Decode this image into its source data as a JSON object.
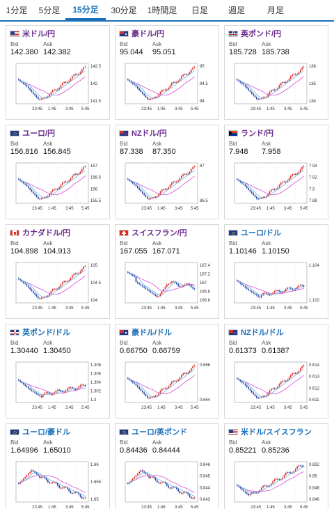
{
  "tabs": [
    {
      "label": "1分足",
      "active": false
    },
    {
      "label": "5分足",
      "active": false
    },
    {
      "label": "15分足",
      "active": true
    },
    {
      "label": "30分足",
      "active": false
    },
    {
      "label": "1時間足",
      "active": false
    },
    {
      "label": "日足",
      "active": false
    },
    {
      "label": "週足",
      "active": false
    },
    {
      "label": "月足",
      "active": false
    }
  ],
  "colors": {
    "accent": "#1a6fb8",
    "pair_jpy": "#6a2c8c",
    "bull": "#d9302c",
    "bear": "#1c3f9c",
    "ma_long": "#d84ad8",
    "ma_short": "#52a8e0"
  },
  "bid_label": "Bid",
  "ask_label": "Ask",
  "cards": [
    {
      "pair": "米ドル/円",
      "flag": "us",
      "bid": "142.380",
      "ask": "142.382",
      "yticks": [
        "142.5",
        "142",
        "141.5"
      ],
      "shape": "v_right"
    },
    {
      "pair": "豪ドル/円",
      "flag": "au",
      "bid": "95.044",
      "ask": "95.051",
      "yticks": [
        "95",
        "94.5",
        "94"
      ],
      "shape": "v_right"
    },
    {
      "pair": "英ポンド/円",
      "flag": "gb",
      "bid": "185.728",
      "ask": "185.738",
      "yticks": [
        "186",
        "185",
        "184"
      ],
      "shape": "v_right"
    },
    {
      "pair": "ユーロ/円",
      "flag": "eu",
      "bid": "156.816",
      "ask": "156.845",
      "yticks": [
        "157",
        "156.5",
        "156",
        "155.5"
      ],
      "shape": "v_right"
    },
    {
      "pair": "NZドル/円",
      "flag": "nz",
      "bid": "87.338",
      "ask": "87.350",
      "yticks": [
        "87",
        "86.5"
      ],
      "shape": "v_right"
    },
    {
      "pair": "ランド/円",
      "flag": "za",
      "bid": "7.948",
      "ask": "7.958",
      "yticks": [
        "7.94",
        "7.92",
        "7.9",
        "7.88"
      ],
      "shape": "v_right"
    },
    {
      "pair": "カナダドル/円",
      "flag": "ca",
      "bid": "104.898",
      "ask": "104.913",
      "yticks": [
        "105",
        "104.5",
        "104"
      ],
      "shape": "v_right"
    },
    {
      "pair": "スイスフラン/円",
      "flag": "ch",
      "bid": "167.055",
      "ask": "167.071",
      "yticks": [
        "167.4",
        "167.2",
        "167",
        "166.8",
        "166.6"
      ],
      "shape": "dip_flat"
    },
    {
      "pair": "ユーロ/ドル",
      "flag": "eu",
      "bid": "1.10146",
      "ask": "1.10150",
      "yticks": [
        "1.104",
        "1.102"
      ],
      "shape": "fall_flat"
    },
    {
      "pair": "英ポンド/ドル",
      "flag": "gb",
      "bid": "1.30440",
      "ask": "1.30450",
      "yticks": [
        "1.308",
        "1.306",
        "1.304",
        "1.302",
        "1.3"
      ],
      "shape": "fall_flat"
    },
    {
      "pair": "豪ドル/ドル",
      "flag": "au",
      "bid": "0.66750",
      "ask": "0.66759",
      "yticks": [
        "0.666",
        "0.664"
      ],
      "shape": "v_right"
    },
    {
      "pair": "NZドル/ドル",
      "flag": "nz",
      "bid": "0.61373",
      "ask": "0.61387",
      "yticks": [
        "0.614",
        "0.613",
        "0.612",
        "0.611"
      ],
      "shape": "v_right"
    },
    {
      "pair": "ユーロ/豪ドル",
      "flag": "eu",
      "bid": "1.64996",
      "ask": "1.65010",
      "yticks": [
        "1.66",
        "1.655",
        "1.65"
      ],
      "shape": "peak_fall"
    },
    {
      "pair": "ユーロ/英ポンド",
      "flag": "eu",
      "bid": "0.84436",
      "ask": "0.84444",
      "yticks": [
        "0.846",
        "0.845",
        "0.844",
        "0.843"
      ],
      "shape": "peak_fall"
    },
    {
      "pair": "米ドル/スイスフラン",
      "flag": "us",
      "bid": "0.85221",
      "ask": "0.85236",
      "yticks": [
        "0.852",
        "0.85",
        "0.848",
        "0.846"
      ],
      "shape": "rise"
    }
  ],
  "xticks": [
    "23:45",
    "1:45",
    "3:45",
    "5:45"
  ]
}
